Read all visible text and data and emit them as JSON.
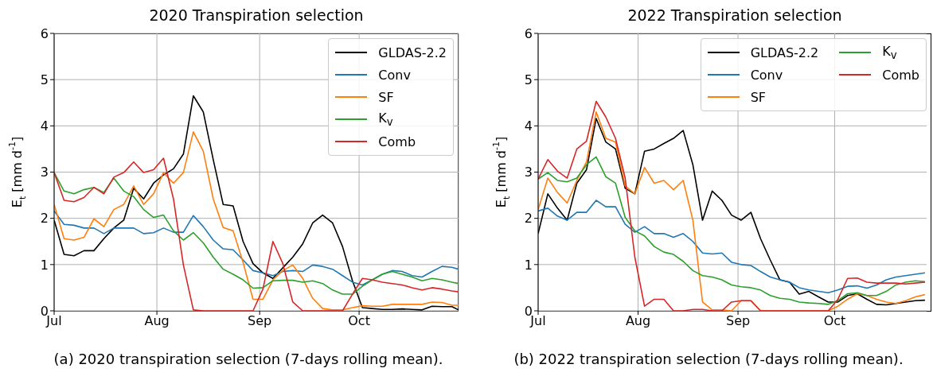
{
  "chart_data": [
    {
      "type": "line",
      "title": "2020 Transpiration selection",
      "ylabel": "E$_{t}$ [mm d$^{-1}$]",
      "x": [
        "2020-07-01",
        "2020-07-04",
        "2020-07-07",
        "2020-07-10",
        "2020-07-13",
        "2020-07-16",
        "2020-07-19",
        "2020-07-22",
        "2020-07-25",
        "2020-07-28",
        "2020-07-31",
        "2020-08-03",
        "2020-08-06",
        "2020-08-09",
        "2020-08-12",
        "2020-08-15",
        "2020-08-18",
        "2020-08-21",
        "2020-08-24",
        "2020-08-27",
        "2020-08-30",
        "2020-09-02",
        "2020-09-05",
        "2020-09-08",
        "2020-09-11",
        "2020-09-14",
        "2020-09-17",
        "2020-09-20",
        "2020-09-23",
        "2020-09-26",
        "2020-09-29",
        "2020-10-02",
        "2020-10-05",
        "2020-10-08",
        "2020-10-11",
        "2020-10-14",
        "2020-10-17",
        "2020-10-20",
        "2020-10-23",
        "2020-10-26",
        "2020-10-29",
        "2020-10-31"
      ],
      "series": [
        {
          "name": "GLDAS-2.2",
          "color": "#000000",
          "values": [
            1.96,
            1.22,
            1.19,
            1.3,
            1.3,
            1.56,
            1.79,
            1.96,
            2.65,
            2.42,
            2.76,
            2.94,
            3.07,
            3.39,
            4.65,
            4.3,
            3.27,
            2.3,
            2.27,
            1.5,
            1.02,
            0.82,
            0.7,
            0.93,
            1.16,
            1.45,
            1.9,
            2.07,
            1.9,
            1.39,
            0.65,
            0.07,
            0.05,
            0.03,
            0.03,
            0.04,
            0.03,
            0.02,
            0.1,
            0.09,
            0.09,
            0.02
          ]
        },
        {
          "name": "Conv",
          "color": "#1f77b4",
          "values": [
            2.16,
            1.87,
            1.85,
            1.79,
            1.79,
            1.67,
            1.79,
            1.79,
            1.79,
            1.67,
            1.69,
            1.79,
            1.7,
            1.7,
            2.06,
            1.82,
            1.53,
            1.34,
            1.32,
            1.1,
            0.87,
            0.82,
            0.76,
            0.85,
            0.87,
            0.85,
            0.99,
            0.96,
            0.9,
            0.76,
            0.62,
            0.56,
            0.67,
            0.79,
            0.87,
            0.85,
            0.76,
            0.73,
            0.85,
            0.96,
            0.94,
            0.9
          ]
        },
        {
          "name": "SF",
          "color": "#ff7f0e",
          "values": [
            2.3,
            1.56,
            1.53,
            1.59,
            1.99,
            1.82,
            2.19,
            2.3,
            2.7,
            2.3,
            2.53,
            2.99,
            2.76,
            2.99,
            3.87,
            3.45,
            2.42,
            1.8,
            1.73,
            1.05,
            0.25,
            0.25,
            0.67,
            0.87,
            0.99,
            0.7,
            0.27,
            0.05,
            0.02,
            0.02,
            0.07,
            0.11,
            0.1,
            0.1,
            0.14,
            0.14,
            0.14,
            0.14,
            0.19,
            0.18,
            0.12,
            0.12
          ]
        },
        {
          "name": "K$_{v}$",
          "color": "#2ca02c",
          "values": [
            2.99,
            2.59,
            2.53,
            2.62,
            2.67,
            2.56,
            2.87,
            2.59,
            2.47,
            2.19,
            2.02,
            2.07,
            1.73,
            1.53,
            1.69,
            1.47,
            1.16,
            0.9,
            0.79,
            0.67,
            0.49,
            0.5,
            0.65,
            0.66,
            0.66,
            0.62,
            0.65,
            0.59,
            0.45,
            0.36,
            0.36,
            0.53,
            0.67,
            0.79,
            0.85,
            0.79,
            0.73,
            0.65,
            0.7,
            0.67,
            0.62,
            0.59
          ]
        },
        {
          "name": "Comb",
          "color": "#d62728",
          "values": [
            2.99,
            2.39,
            2.36,
            2.45,
            2.67,
            2.53,
            2.89,
            2.99,
            3.22,
            2.99,
            3.05,
            3.3,
            2.42,
            0.99,
            0.02,
            0,
            0,
            0,
            0,
            0,
            0,
            0.47,
            1.5,
            1.02,
            0.19,
            0,
            0,
            0,
            0,
            0,
            0.36,
            0.7,
            0.67,
            0.62,
            0.59,
            0.56,
            0.5,
            0.45,
            0.5,
            0.47,
            0.43,
            0.41
          ]
        }
      ],
      "xlim": [
        "2020-07-01",
        "2020-10-31"
      ],
      "xticks": [
        {
          "value": "2020-07-01",
          "label": "Jul"
        },
        {
          "value": "2020-08-01",
          "label": "Aug"
        },
        {
          "value": "2020-09-01",
          "label": "Sep"
        },
        {
          "value": "2020-10-01",
          "label": "Oct"
        }
      ],
      "ylim": [
        0,
        6
      ],
      "yticks": [
        0,
        1,
        2,
        3,
        4,
        5,
        6
      ],
      "grid": true,
      "legend": "top right",
      "annotations": [
        "(a) 2020 transpiration selection (7-days rolling mean)."
      ]
    },
    {
      "type": "line",
      "title": "2022 Transpiration selection",
      "ylabel": "E$_{t}$ [mm d$^{-1}$]",
      "x": [
        "2022-07-01",
        "2022-07-04",
        "2022-07-07",
        "2022-07-10",
        "2022-07-13",
        "2022-07-16",
        "2022-07-19",
        "2022-07-22",
        "2022-07-25",
        "2022-07-28",
        "2022-07-31",
        "2022-08-03",
        "2022-08-06",
        "2022-08-09",
        "2022-08-12",
        "2022-08-15",
        "2022-08-18",
        "2022-08-21",
        "2022-08-24",
        "2022-08-27",
        "2022-08-30",
        "2022-09-02",
        "2022-09-05",
        "2022-09-08",
        "2022-09-11",
        "2022-09-14",
        "2022-09-17",
        "2022-09-20",
        "2022-09-23",
        "2022-09-26",
        "2022-09-29",
        "2022-10-02",
        "2022-10-05",
        "2022-10-08",
        "2022-10-11",
        "2022-10-14",
        "2022-10-17",
        "2022-10-20",
        "2022-10-23",
        "2022-10-26",
        "2022-10-29"
      ],
      "series": [
        {
          "name": "GLDAS-2.2",
          "color": "#000000",
          "values": [
            1.67,
            2.53,
            2.22,
            1.96,
            2.76,
            3.05,
            4.16,
            3.65,
            3.5,
            2.65,
            2.53,
            3.45,
            3.5,
            3.62,
            3.73,
            3.9,
            3.16,
            1.96,
            2.59,
            2.39,
            2.07,
            1.96,
            2.13,
            1.56,
            1.1,
            0.67,
            0.62,
            0.36,
            0.42,
            0.3,
            0.19,
            0.19,
            0.33,
            0.37,
            0.25,
            0.14,
            0.13,
            0.16,
            0.19,
            0.22,
            0.23
          ]
        },
        {
          "name": "Conv",
          "color": "#1f77b4",
          "values": [
            2.16,
            2.22,
            2.05,
            1.96,
            2.13,
            2.13,
            2.39,
            2.25,
            2.25,
            1.87,
            1.7,
            1.82,
            1.67,
            1.67,
            1.59,
            1.67,
            1.5,
            1.25,
            1.23,
            1.25,
            1.05,
            1.0,
            0.98,
            0.85,
            0.73,
            0.67,
            0.62,
            0.5,
            0.45,
            0.42,
            0.39,
            0.45,
            0.53,
            0.54,
            0.49,
            0.56,
            0.67,
            0.73,
            0.76,
            0.79,
            0.82
          ]
        },
        {
          "name": "SF",
          "color": "#ff7f0e",
          "values": [
            2.19,
            2.87,
            2.56,
            2.33,
            2.82,
            3.22,
            4.3,
            3.73,
            3.65,
            2.7,
            2.53,
            3.1,
            2.76,
            2.82,
            2.62,
            2.82,
            1.96,
            0.19,
            0.02,
            0.02,
            0,
            0.22,
            0.22,
            0,
            0,
            0,
            0,
            0,
            0,
            0,
            0,
            0.1,
            0.25,
            0.37,
            0.33,
            0.25,
            0.19,
            0.16,
            0.22,
            0.3,
            0.35
          ]
        },
        {
          "name": "K$_{v}$",
          "color": "#2ca02c",
          "values": [
            2.85,
            2.99,
            2.82,
            2.79,
            2.87,
            3.16,
            3.33,
            2.9,
            2.76,
            2.02,
            1.73,
            1.62,
            1.39,
            1.27,
            1.22,
            1.07,
            0.87,
            0.76,
            0.73,
            0.67,
            0.56,
            0.52,
            0.5,
            0.45,
            0.33,
            0.27,
            0.25,
            0.19,
            0.17,
            0.16,
            0.14,
            0.22,
            0.37,
            0.39,
            0.33,
            0.33,
            0.42,
            0.56,
            0.62,
            0.65,
            0.63
          ]
        },
        {
          "name": "Comb",
          "color": "#d62728",
          "values": [
            2.85,
            3.27,
            3.02,
            2.87,
            3.5,
            3.67,
            4.53,
            4.19,
            3.73,
            2.87,
            1.16,
            0.1,
            0.25,
            0.25,
            0,
            0,
            0.03,
            0.03,
            0,
            0,
            0.19,
            0.22,
            0.22,
            0,
            0,
            0,
            0,
            0,
            0,
            0,
            0,
            0.25,
            0.7,
            0.71,
            0.62,
            0.6,
            0.6,
            0.6,
            0.58,
            0.6,
            0.62
          ]
        }
      ],
      "xlim": [
        "2022-07-01",
        "2022-10-31"
      ],
      "xticks": [
        {
          "value": "2022-07-01",
          "label": "Jul"
        },
        {
          "value": "2022-08-01",
          "label": "Aug"
        },
        {
          "value": "2022-09-01",
          "label": "Sep"
        },
        {
          "value": "2022-10-01",
          "label": "Oct"
        }
      ],
      "ylim": [
        0,
        6
      ],
      "yticks": [
        0,
        1,
        2,
        3,
        4,
        5,
        6
      ],
      "grid": true,
      "legend": "top right",
      "annotations": [
        "(b) 2022 transpiration selection (7-days rolling mean)."
      ]
    }
  ]
}
